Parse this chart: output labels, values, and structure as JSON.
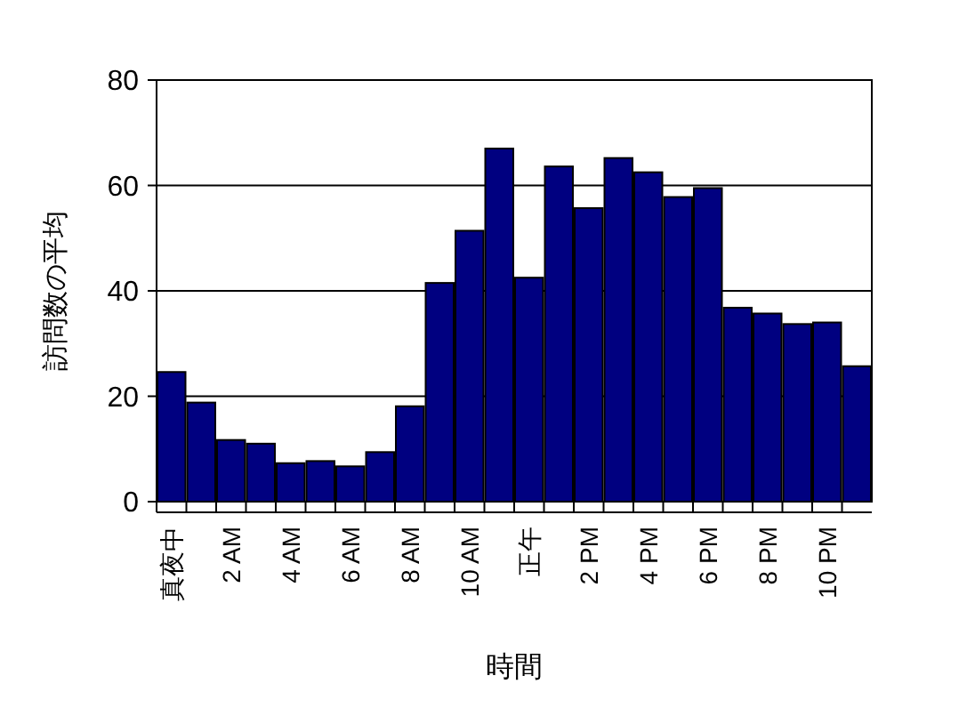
{
  "chart_data": {
    "type": "bar",
    "xlabel": "時間",
    "ylabel": "訪問数の平均",
    "categories": [
      "真夜中",
      null,
      "2 AM",
      null,
      "4 AM",
      null,
      "6 AM",
      null,
      "8 AM",
      null,
      "10 AM",
      null,
      "正午",
      null,
      "2 PM",
      null,
      "4 PM",
      null,
      "6 PM",
      null,
      "8 PM",
      null,
      "10 PM",
      null
    ],
    "values": [
      24.6,
      18.8,
      11.7,
      11,
      7.3,
      7.7,
      6.7,
      9.4,
      18.1,
      41.5,
      51.4,
      67,
      42.5,
      63.6,
      55.7,
      65.2,
      62.5,
      57.8,
      59.5,
      36.8,
      35.7,
      33.7,
      34,
      25.7
    ],
    "color": "#000080",
    "ylim": [
      0,
      80
    ],
    "yticks": [
      0,
      20,
      40,
      60,
      80
    ],
    "grid": "y"
  }
}
